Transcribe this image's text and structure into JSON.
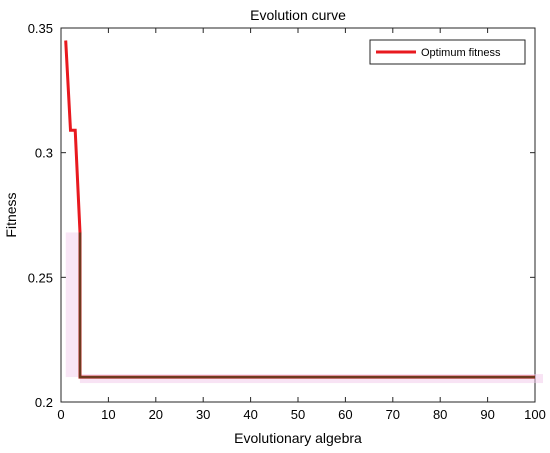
{
  "chart_data": {
    "type": "line",
    "title": "Evolution curve",
    "xlabel": "Evolutionary algebra",
    "ylabel": "Fitness",
    "xlim": [
      0,
      100
    ],
    "ylim": [
      0.2,
      0.35
    ],
    "x_ticks": [
      "0",
      "10",
      "20",
      "30",
      "40",
      "50",
      "60",
      "70",
      "80",
      "90",
      "100"
    ],
    "y_ticks": [
      "0.2",
      "0.25",
      "0.3",
      "0.35"
    ],
    "grid": false,
    "legend_position": "top-right",
    "series": [
      {
        "name": "Optimum fitness",
        "color": "#e8191f",
        "overlay_color": "#6e3a1f",
        "x": [
          1,
          2,
          2,
          3,
          3,
          4,
          4,
          100
        ],
        "y": [
          0.345,
          0.309,
          0.309,
          0.309,
          0.309,
          0.268,
          0.21,
          0.21
        ]
      }
    ]
  }
}
